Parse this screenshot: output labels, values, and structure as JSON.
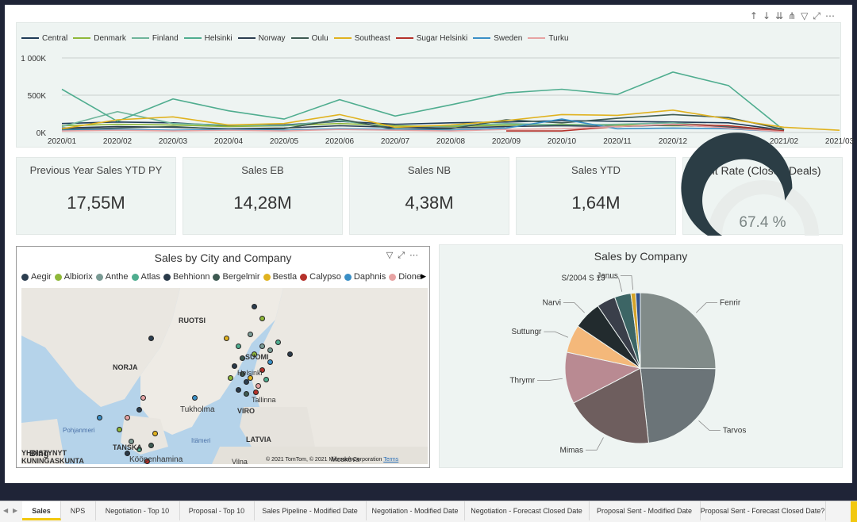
{
  "toolbar_icons": [
    "arrow-up-icon",
    "arrow-down-icon",
    "double-arrow-down-icon",
    "expand-hierarchy-icon",
    "filter-icon",
    "focus-mode-icon",
    "more-options-icon"
  ],
  "line_chart": {
    "chart_data": {
      "type": "line",
      "x": [
        "2020/01",
        "2020/02",
        "2020/03",
        "2020/04",
        "2020/05",
        "2020/06",
        "2020/07",
        "2020/08",
        "2020/09",
        "2020/10",
        "2020/11",
        "2020/12",
        "2021/01",
        "2021/02",
        "2021/03"
      ],
      "yticks": [
        "1 000K",
        "500K",
        "0K"
      ],
      "ylim": [
        0,
        1000000
      ],
      "series": [
        {
          "name": "Central",
          "color": "#1f3b57",
          "values": [
            120000,
            140000,
            130000,
            90000,
            100000,
            150000,
            110000,
            130000,
            140000,
            160000,
            150000,
            140000,
            130000,
            30000,
            null
          ]
        },
        {
          "name": "Denmark",
          "color": "#8fb83a",
          "values": [
            90000,
            110000,
            100000,
            80000,
            90000,
            120000,
            90000,
            80000,
            100000,
            110000,
            100000,
            90000,
            90000,
            20000,
            null
          ]
        },
        {
          "name": "Finland",
          "color": "#6fb59b",
          "values": [
            80000,
            280000,
            120000,
            100000,
            90000,
            160000,
            60000,
            90000,
            120000,
            100000,
            110000,
            130000,
            80000,
            30000,
            null
          ]
        },
        {
          "name": "Helsinki",
          "color": "#4fad8f",
          "values": [
            580000,
            150000,
            450000,
            290000,
            180000,
            440000,
            220000,
            370000,
            530000,
            580000,
            510000,
            810000,
            630000,
            30000,
            null
          ]
        },
        {
          "name": "Norway",
          "color": "#2c3e50",
          "values": [
            60000,
            80000,
            70000,
            50000,
            60000,
            90000,
            70000,
            60000,
            80000,
            90000,
            80000,
            100000,
            70000,
            20000,
            null
          ]
        },
        {
          "name": "Oulu",
          "color": "#3e5a52",
          "values": [
            40000,
            60000,
            80000,
            40000,
            50000,
            180000,
            40000,
            50000,
            170000,
            130000,
            190000,
            240000,
            200000,
            40000,
            null
          ]
        },
        {
          "name": "Southeast",
          "color": "#e0b21f",
          "values": [
            50000,
            170000,
            210000,
            100000,
            120000,
            240000,
            70000,
            100000,
            160000,
            240000,
            230000,
            300000,
            180000,
            70000,
            30000
          ]
        },
        {
          "name": "Sugar Helsinki",
          "color": "#b5322b",
          "values": [
            null,
            null,
            null,
            null,
            null,
            null,
            null,
            null,
            20000,
            20000,
            80000,
            110000,
            90000,
            20000,
            null
          ]
        },
        {
          "name": "Sweden",
          "color": "#3a8fc6",
          "values": [
            30000,
            40000,
            30000,
            40000,
            30000,
            50000,
            40000,
            30000,
            60000,
            180000,
            50000,
            60000,
            50000,
            10000,
            null
          ]
        },
        {
          "name": "Turku",
          "color": "#e7a3a3",
          "values": [
            20000,
            30000,
            20000,
            30000,
            20000,
            40000,
            30000,
            20000,
            40000,
            50000,
            80000,
            110000,
            60000,
            10000,
            null
          ]
        }
      ]
    }
  },
  "kpis": [
    {
      "title": "Previous Year Sales YTD PY",
      "value": "17,55M"
    },
    {
      "title": "Sales EB",
      "value": "14,28M"
    },
    {
      "title": "Sales NB",
      "value": "4,38M"
    },
    {
      "title": "Sales YTD",
      "value": "1,64M"
    }
  ],
  "gauge": {
    "title": "Hit Rate (Closed Deals)",
    "value_label": "67.4 %",
    "fraction": 0.674,
    "fill_color": "#2b3d45",
    "track_color": "#e8ecea"
  },
  "map": {
    "title": "Sales by City and Company",
    "legend": [
      {
        "name": "Aegir",
        "color": "#2c3e50"
      },
      {
        "name": "Albiorix",
        "color": "#8fb83a"
      },
      {
        "name": "Anthe",
        "color": "#7b9b95"
      },
      {
        "name": "Atlas",
        "color": "#4fad8f"
      },
      {
        "name": "Behhionn",
        "color": "#2a3a4a"
      },
      {
        "name": "Bergelmir",
        "color": "#3e5a52"
      },
      {
        "name": "Bestla",
        "color": "#e0b21f"
      },
      {
        "name": "Calypso",
        "color": "#b5322b"
      },
      {
        "name": "Daphnis",
        "color": "#3a8fc6"
      },
      {
        "name": "Dione",
        "color": "#e7a3a3"
      }
    ],
    "labels": {
      "ruotsi": "RUOTSI",
      "norja": "NORJA",
      "suomi": "SUOMI",
      "helsinki": "Helsinki",
      "tallinna": "Tallinna",
      "tukholma": "Tukholma",
      "viro": "VIRO",
      "latvia": "LATVIA",
      "vilna": "Vilna",
      "moskova": "Moskova",
      "pohjanmeri": "Pohjanmeri",
      "itameri": "Itämeri",
      "tanska": "TANSKA",
      "kopenhamina": "Kööpenhamina",
      "yhdistynyt": "YHDISTYNYT",
      "kuningaskunta": "KUNINGASKUNTA",
      "bing": "Bing"
    },
    "attribution": "© 2021 TomTom, © 2021 Microsoft Corporation",
    "terms": "Terms"
  },
  "pie": {
    "title": "Sales by Company",
    "chart_data": {
      "type": "pie",
      "slices": [
        {
          "label": "Fenrir",
          "value": 25,
          "color": "#818b89"
        },
        {
          "label": "Tarvos",
          "value": 23,
          "color": "#6b7478"
        },
        {
          "label": "Mimas",
          "value": 19,
          "color": "#6e5e5e"
        },
        {
          "label": "Thrymr",
          "value": 11,
          "color": "#b98a92"
        },
        {
          "label": "Suttungr",
          "value": 6,
          "color": "#f4b87a"
        },
        {
          "label": "Narvi",
          "value": 6,
          "color": "#222b2e"
        },
        {
          "label": "",
          "value": 4,
          "color": "#3a3f4a"
        },
        {
          "label": "S/2004 S 13",
          "value": 3.5,
          "color": "#3c6565"
        },
        {
          "label": "Janus",
          "value": 1,
          "color": "#d4a32a"
        },
        {
          "label": "",
          "value": 1,
          "color": "#2f4f8a"
        }
      ]
    }
  },
  "tabs": [
    "Sales",
    "NPS",
    "Negotiation - Top 10",
    "Proposal - Top 10",
    "Sales Pipeline - Modified Date",
    "Negotiation - Modified Date",
    "Negotiation - Forecast Closed Date",
    "Proposal Sent - Modified Date",
    "Proposal Sent - Forecast Closed Date?"
  ],
  "active_tab": "Sales"
}
